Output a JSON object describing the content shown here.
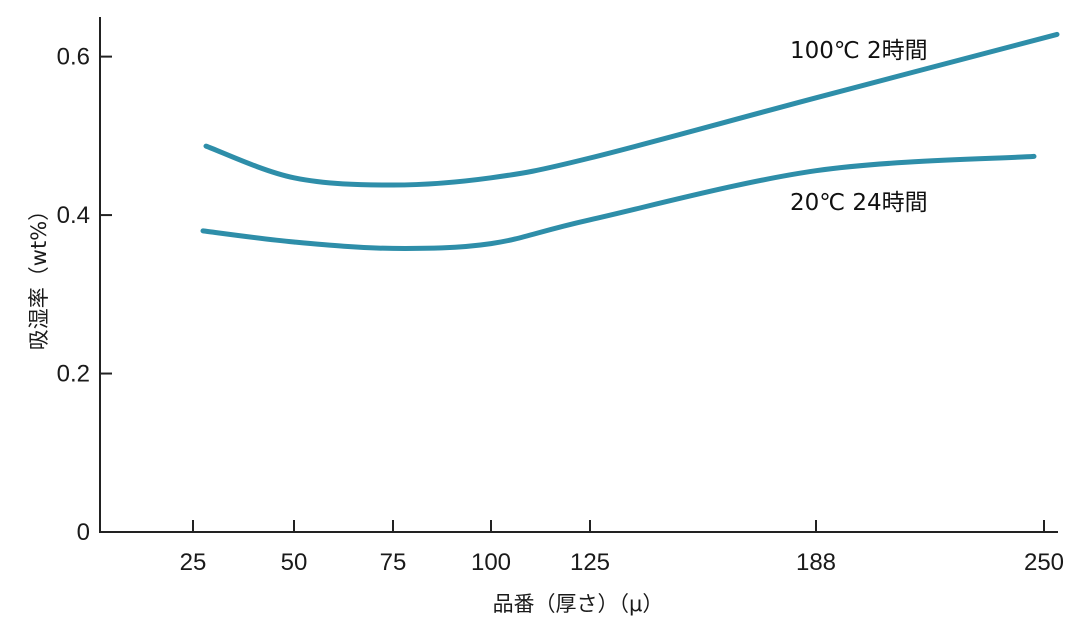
{
  "chart_data": {
    "type": "line",
    "xlabel": "品番（厚さ）（μ）",
    "ylabel": "吸湿率（wt%）",
    "categories": [
      "25",
      "50",
      "75",
      "100",
      "125",
      "188",
      "250"
    ],
    "ylim": [
      0,
      0.65
    ],
    "yticks": [
      "0",
      "0.2",
      "0.4",
      "0.6"
    ],
    "ytick_values": [
      0,
      0.2,
      0.4,
      0.6
    ],
    "grid": false,
    "series": [
      {
        "name": "100℃ 2時間",
        "color": "#2e8ea9",
        "x": [
          25,
          50,
          75,
          100,
          125,
          188,
          250
        ],
        "values": [
          0.487,
          0.447,
          0.438,
          0.447,
          0.472,
          0.548,
          0.628
        ]
      },
      {
        "name": "20℃ 24時間",
        "color": "#2e8ea9",
        "x": [
          25,
          50,
          75,
          100,
          125,
          188,
          250
        ],
        "values": [
          0.38,
          0.366,
          0.358,
          0.364,
          0.394,
          0.456,
          0.474
        ]
      }
    ]
  }
}
